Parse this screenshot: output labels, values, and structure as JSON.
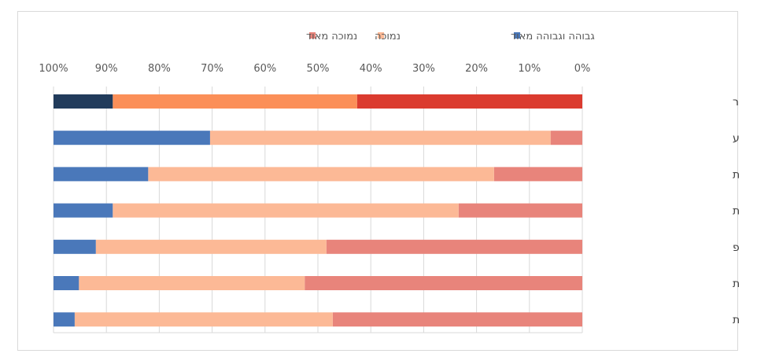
{
  "chart_data": {
    "type": "bar",
    "orientation": "horizontal",
    "stacked": "percent",
    "x_axis_reversed": true,
    "xlim": [
      0,
      100
    ],
    "x_ticks": [
      "0%",
      "10%",
      "20%",
      "30%",
      "40%",
      "50%",
      "60%",
      "70%",
      "80%",
      "90%",
      "100%"
    ],
    "legend_position": "top",
    "grid": true,
    "categories": [
      "סך אוכלוסיית הסקר",
      "שירותים עתירי ידע",
      "תעשייה עלית",
      "תעשייה מעורבת עלית",
      "שירותים דלי מו\"פ",
      "תעשייה מסורתית",
      "תעשייה מעורבת מסורתית"
    ],
    "series": [
      {
        "name": "נמוכה מאוד",
        "color": "#e8847b",
        "values": [
          42.6,
          6.0,
          16.7,
          23.4,
          48.4,
          52.5,
          47.2
        ]
      },
      {
        "name": "נמוכה",
        "color": "#fcb996",
        "values": [
          46.2,
          64.4,
          65.4,
          65.4,
          43.6,
          42.7,
          48.8
        ]
      },
      {
        "name": "גבוהה וגבוהה מאוד",
        "color": "#4a78ba",
        "values": [
          11.2,
          29.6,
          17.9,
          11.2,
          8.0,
          4.8,
          4.0
        ]
      }
    ],
    "highlight_colors": [
      "#db3b2f",
      "#fb8f58",
      "#213b5b"
    ]
  }
}
